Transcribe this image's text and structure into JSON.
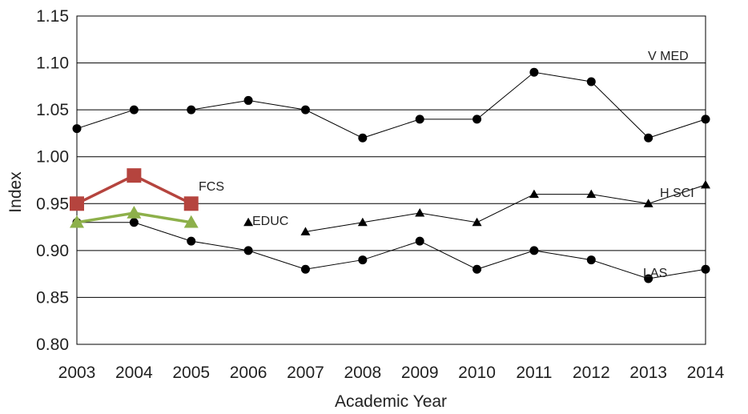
{
  "chart_data": {
    "type": "line",
    "title": "",
    "xlabel": "Academic Year",
    "ylabel": "Index",
    "categories": [
      "2003",
      "2004",
      "2005",
      "2006",
      "2007",
      "2008",
      "2009",
      "2010",
      "2011",
      "2012",
      "2013",
      "2014"
    ],
    "ylim": [
      0.8,
      1.15
    ],
    "yticks": [
      "0.80",
      "0.85",
      "0.90",
      "0.95",
      "1.00",
      "1.05",
      "1.10",
      "1.15"
    ],
    "grid": true,
    "legend": "none",
    "series": [
      {
        "name": "V MED",
        "color": "#000000",
        "marker": "circle",
        "values": [
          1.03,
          1.05,
          1.05,
          1.06,
          1.05,
          1.02,
          1.04,
          1.04,
          1.09,
          1.08,
          1.02,
          1.04
        ]
      },
      {
        "name": "LAS",
        "color": "#000000",
        "marker": "circle",
        "values": [
          0.93,
          0.93,
          0.91,
          0.9,
          0.88,
          0.89,
          0.91,
          0.88,
          0.9,
          0.89,
          0.87,
          0.88
        ]
      },
      {
        "name": "H SCI",
        "color": "#000000",
        "marker": "triangle",
        "values": [
          null,
          null,
          null,
          null,
          0.92,
          0.93,
          0.94,
          0.93,
          0.96,
          0.96,
          0.95,
          0.97
        ]
      },
      {
        "name": "EDUC",
        "color": "#000000",
        "marker": "triangle",
        "values": [
          null,
          null,
          null,
          0.93,
          null,
          null,
          null,
          null,
          null,
          null,
          null,
          null
        ]
      },
      {
        "name": "FCS",
        "color": "#b5443e",
        "marker": "square",
        "values": [
          0.95,
          0.98,
          0.95,
          null,
          null,
          null,
          null,
          null,
          null,
          null,
          null,
          null
        ]
      },
      {
        "name": "",
        "color": "#8db04a",
        "marker": "triangle",
        "values": [
          0.93,
          0.94,
          0.93,
          null,
          null,
          null,
          null,
          null,
          null,
          null,
          null,
          null
        ]
      }
    ]
  }
}
